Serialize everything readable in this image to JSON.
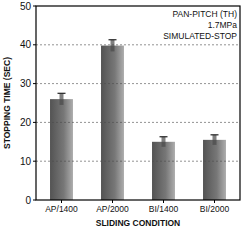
{
  "chart_data": {
    "type": "bar",
    "annotations": [
      "PAN-PITCH (TH)",
      "1.7MPa",
      "SIMULATED-STOP"
    ],
    "x_label": "SLIDING CONDITION",
    "y_label": "STOPPING TIME (SEC)",
    "categories": [
      "AP/1400",
      "AP/2000",
      "BI/1400",
      "BI/2000"
    ],
    "values": [
      26,
      39.8,
      15,
      15.5
    ],
    "errors": [
      1.5,
      1.5,
      1.3,
      1.3
    ],
    "color": "#4a4a4a",
    "ylim": [
      0,
      50
    ],
    "yticks": [
      0,
      10,
      20,
      30,
      40,
      50
    ],
    "grid": true
  }
}
